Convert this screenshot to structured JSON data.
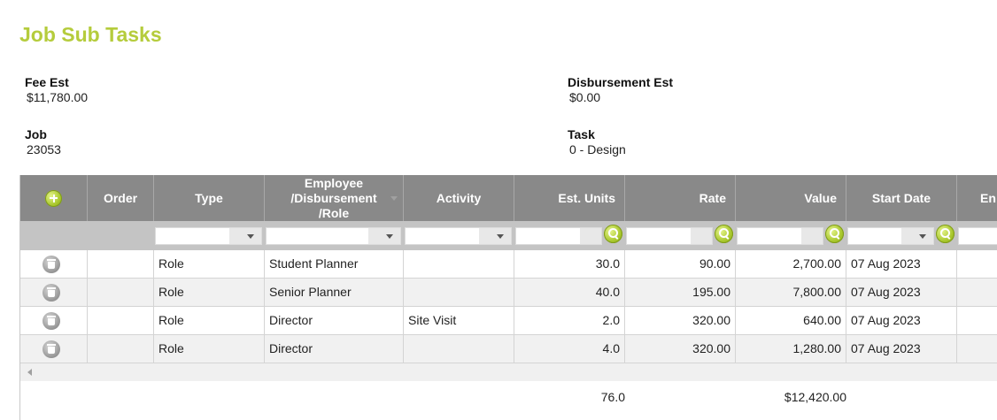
{
  "page": {
    "title": "Job Sub Tasks"
  },
  "summary": {
    "fee_est": {
      "label": "Fee Est",
      "value": "$11,780.00"
    },
    "disbursement_est": {
      "label": "Disbursement Est",
      "value": "$0.00"
    },
    "job": {
      "label": "Job",
      "value": "23053"
    },
    "task": {
      "label": "Task",
      "value": "0 - Design"
    }
  },
  "grid": {
    "columns": {
      "order": "Order",
      "type": "Type",
      "employee_line1": "Employee",
      "employee_line2": "/Disbursement",
      "employee_line3": "/Role",
      "activity": "Activity",
      "est_units": "Est. Units",
      "rate": "Rate",
      "value": "Value",
      "start_date": "Start Date",
      "end_date": "En"
    },
    "rows": [
      {
        "order": "",
        "type": "Role",
        "employee": "Student Planner",
        "activity": "",
        "est_units": "30.0",
        "rate": "90.00",
        "value": "2,700.00",
        "start_date": "07 Aug 2023"
      },
      {
        "order": "",
        "type": "Role",
        "employee": "Senior Planner",
        "activity": "",
        "est_units": "40.0",
        "rate": "195.00",
        "value": "7,800.00",
        "start_date": "07 Aug 2023"
      },
      {
        "order": "",
        "type": "Role",
        "employee": "Director",
        "activity": "Site Visit",
        "est_units": "2.0",
        "rate": "320.00",
        "value": "640.00",
        "start_date": "07 Aug 2023"
      },
      {
        "order": "",
        "type": "Role",
        "employee": "Director",
        "activity": "",
        "est_units": "4.0",
        "rate": "320.00",
        "value": "1,280.00",
        "start_date": "07 Aug 2023"
      }
    ],
    "totals": {
      "est_units": "76.0",
      "value": "$12,420.00"
    }
  },
  "icons": {
    "add": "plus-circle-icon",
    "search": "magnifier-icon",
    "delete": "trash-icon"
  },
  "colors": {
    "accent": "#b5cc3c",
    "header_bg": "#898989",
    "filter_bg": "#c4c4c4"
  }
}
